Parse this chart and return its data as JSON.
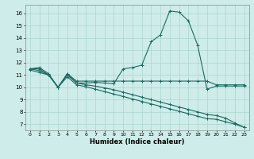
{
  "xlabel": "Humidex (Indice chaleur)",
  "xlim": [
    -0.5,
    23.5
  ],
  "ylim": [
    6.5,
    16.7
  ],
  "xticks": [
    0,
    1,
    2,
    3,
    4,
    5,
    6,
    7,
    8,
    9,
    10,
    11,
    12,
    13,
    14,
    15,
    16,
    17,
    18,
    19,
    20,
    21,
    22,
    23
  ],
  "yticks": [
    7,
    8,
    9,
    10,
    11,
    12,
    13,
    14,
    15,
    16
  ],
  "background_color": "#ceecea",
  "grid_color": "#aed4d0",
  "line_color": "#1a6b60",
  "line1_x": [
    0,
    1,
    2,
    3,
    4,
    5,
    6,
    7,
    8,
    9,
    10,
    11,
    12,
    13,
    14,
    15,
    16,
    17,
    18,
    19,
    20,
    21,
    22,
    23
  ],
  "line1_y": [
    11.5,
    11.6,
    11.1,
    10.0,
    11.1,
    10.35,
    10.35,
    10.4,
    10.35,
    10.3,
    11.5,
    11.6,
    11.8,
    13.7,
    14.25,
    16.2,
    16.1,
    15.4,
    13.4,
    9.85,
    10.1,
    10.1,
    10.1,
    10.1
  ],
  "line2_x": [
    0,
    1,
    2,
    3,
    4,
    5,
    6,
    7,
    8,
    9,
    10,
    11,
    12,
    13,
    14,
    15,
    16,
    17,
    18,
    19,
    20,
    21,
    22,
    23
  ],
  "line2_y": [
    11.5,
    11.5,
    11.0,
    10.0,
    11.1,
    10.5,
    10.5,
    10.5,
    10.5,
    10.5,
    10.5,
    10.5,
    10.5,
    10.5,
    10.5,
    10.5,
    10.5,
    10.5,
    10.5,
    10.5,
    10.2,
    10.2,
    10.2,
    10.2
  ],
  "line3_x": [
    0,
    1,
    2,
    3,
    4,
    5,
    6,
    7,
    8,
    9,
    10,
    11,
    12,
    13,
    14,
    15,
    16,
    17,
    18,
    19,
    20,
    21,
    22,
    23
  ],
  "line3_y": [
    11.5,
    11.35,
    11.0,
    10.0,
    11.0,
    10.35,
    10.2,
    10.1,
    9.95,
    9.8,
    9.6,
    9.4,
    9.2,
    9.0,
    8.8,
    8.6,
    8.4,
    8.2,
    8.0,
    7.8,
    7.7,
    7.5,
    7.1,
    6.75
  ],
  "line4_x": [
    0,
    1,
    2,
    3,
    4,
    5,
    6,
    7,
    8,
    9,
    10,
    11,
    12,
    13,
    14,
    15,
    16,
    17,
    18,
    19,
    20,
    21,
    22,
    23
  ],
  "line4_y": [
    11.4,
    11.2,
    11.0,
    10.0,
    10.85,
    10.2,
    10.05,
    9.85,
    9.65,
    9.45,
    9.25,
    9.05,
    8.85,
    8.65,
    8.45,
    8.25,
    8.05,
    7.85,
    7.65,
    7.45,
    7.4,
    7.2,
    7.0,
    6.75
  ]
}
